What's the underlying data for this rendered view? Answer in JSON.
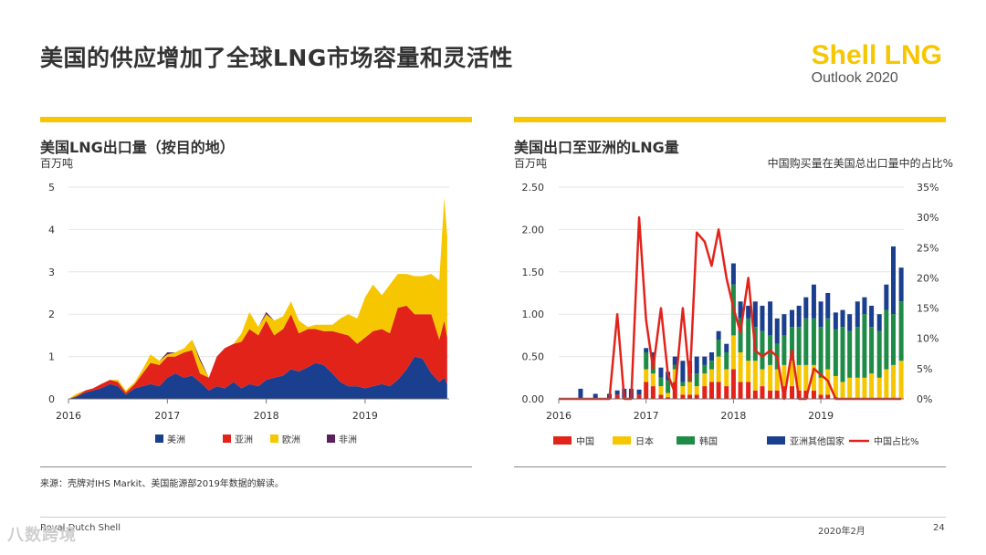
{
  "header": {
    "title": "美国的供应增加了全球LNG市场容量和灵活性",
    "brand_line1": "Shell LNG",
    "brand_line2": "Outlook 2020"
  },
  "colors": {
    "accent": "#F6C700",
    "americas": "#1A3F8F",
    "asia": "#E2231A",
    "europe": "#F6C700",
    "africa": "#5B1F5E",
    "china": "#E2231A",
    "japan": "#F6C700",
    "korea": "#1E8C46",
    "other_asia": "#1A3F8F",
    "china_share": "#E2231A"
  },
  "left_panel": {
    "title": "美国LNG出口量（按目的地）",
    "unit": "百万吨"
  },
  "right_panel": {
    "title": "美国出口至亚洲的LNG量",
    "unit": "百万吨",
    "right_axis_label": "中国购买量在美国总出口量中的占比%"
  },
  "chart_data": [
    {
      "type": "area",
      "stacked": true,
      "title": "美国LNG出口量（按目的地）",
      "ylabel": "百万吨",
      "ylim": [
        0,
        5
      ],
      "yticks": [
        0,
        1,
        2,
        3,
        4,
        5
      ],
      "xlim": [
        2016.0,
        2019.85
      ],
      "x_ticks": [
        2016,
        2017,
        2018,
        2019
      ],
      "x": [
        2016.0,
        2016.08,
        2016.17,
        2016.25,
        2016.33,
        2016.42,
        2016.5,
        2016.58,
        2016.67,
        2016.75,
        2016.83,
        2016.92,
        2017.0,
        2017.08,
        2017.17,
        2017.25,
        2017.33,
        2017.42,
        2017.5,
        2017.58,
        2017.67,
        2017.75,
        2017.83,
        2017.92,
        2018.0,
        2018.08,
        2018.17,
        2018.25,
        2018.33,
        2018.42,
        2018.5,
        2018.58,
        2018.67,
        2018.75,
        2018.83,
        2018.92,
        2019.0,
        2019.08,
        2019.17,
        2019.25,
        2019.33,
        2019.42,
        2019.5,
        2019.58,
        2019.67,
        2019.75,
        2019.8,
        2019.83
      ],
      "series": [
        {
          "name": "美洲",
          "values": [
            0.0,
            0.05,
            0.15,
            0.2,
            0.25,
            0.35,
            0.3,
            0.1,
            0.25,
            0.3,
            0.35,
            0.3,
            0.5,
            0.6,
            0.5,
            0.55,
            0.4,
            0.2,
            0.3,
            0.25,
            0.4,
            0.25,
            0.35,
            0.3,
            0.45,
            0.5,
            0.55,
            0.7,
            0.65,
            0.75,
            0.85,
            0.8,
            0.6,
            0.4,
            0.3,
            0.3,
            0.25,
            0.3,
            0.35,
            0.3,
            0.45,
            0.7,
            1.0,
            0.95,
            0.6,
            0.4,
            0.5,
            0.35
          ]
        },
        {
          "name": "亚洲",
          "values": [
            0.0,
            0.02,
            0.05,
            0.05,
            0.1,
            0.1,
            0.1,
            0.05,
            0.1,
            0.3,
            0.5,
            0.5,
            0.5,
            0.4,
            0.6,
            0.6,
            0.2,
            0.3,
            0.7,
            0.95,
            0.9,
            1.1,
            1.3,
            1.2,
            1.4,
            1.0,
            1.1,
            1.3,
            0.9,
            0.9,
            0.8,
            0.8,
            1.0,
            1.15,
            1.2,
            1.0,
            1.2,
            1.3,
            1.3,
            1.25,
            1.7,
            1.5,
            1.0,
            1.05,
            1.4,
            1.0,
            1.35,
            1.1
          ]
        },
        {
          "name": "欧洲",
          "values": [
            0.0,
            0.05,
            0.0,
            0.0,
            0.0,
            0.0,
            0.05,
            0.05,
            0.05,
            0.1,
            0.2,
            0.1,
            0.05,
            0.1,
            0.1,
            0.25,
            0.3,
            0.0,
            0.0,
            0.0,
            0.0,
            0.2,
            0.4,
            0.2,
            0.15,
            0.35,
            0.3,
            0.3,
            0.3,
            0.05,
            0.1,
            0.15,
            0.15,
            0.35,
            0.5,
            0.6,
            0.95,
            1.1,
            0.8,
            1.15,
            0.8,
            0.75,
            0.9,
            0.9,
            0.95,
            1.4,
            2.9,
            2.4
          ]
        },
        {
          "name": "非洲",
          "values": [
            0,
            0,
            0,
            0,
            0,
            0,
            0,
            0,
            0,
            0,
            0,
            0,
            0.05,
            0,
            0,
            0,
            0.05,
            0,
            0,
            0,
            0,
            0,
            0,
            0,
            0.05,
            0,
            0,
            0,
            0,
            0,
            0,
            0,
            0,
            0,
            0,
            0,
            0,
            0,
            0,
            0,
            0,
            0,
            0,
            0,
            0,
            0,
            0,
            0
          ]
        }
      ],
      "legend": [
        "美洲",
        "亚洲",
        "欧洲",
        "非洲"
      ]
    },
    {
      "type": "bar",
      "stacked": true,
      "title": "美国出口至亚洲的LNG量",
      "ylabel": "百万吨",
      "ylim": [
        0,
        2.5
      ],
      "yticks": [
        "0.00",
        "0.50",
        "1.00",
        "1.50",
        "2.00",
        "2.50"
      ],
      "y2label": "中国购买量在美国总出口量中的占比%",
      "y2lim": [
        0,
        35
      ],
      "y2ticks": [
        "0%",
        "5%",
        "10%",
        "15%",
        "20%",
        "25%",
        "30%",
        "35%"
      ],
      "xlim": [
        2016.0,
        2019.95
      ],
      "x_ticks": [
        2016,
        2017,
        2018,
        2019
      ],
      "x": [
        2016.25,
        2016.42,
        2016.58,
        2016.67,
        2016.75,
        2016.83,
        2016.92,
        2017.0,
        2017.08,
        2017.17,
        2017.25,
        2017.33,
        2017.42,
        2017.5,
        2017.58,
        2017.67,
        2017.75,
        2017.83,
        2017.92,
        2018.0,
        2018.08,
        2018.17,
        2018.25,
        2018.33,
        2018.42,
        2018.5,
        2018.58,
        2018.67,
        2018.75,
        2018.83,
        2018.92,
        2019.0,
        2019.08,
        2019.17,
        2019.25,
        2019.33,
        2019.42,
        2019.5,
        2019.58,
        2019.67,
        2019.75,
        2019.83,
        2019.92
      ],
      "series": [
        {
          "name": "中国",
          "values": [
            0,
            0,
            0.01,
            0.05,
            0.02,
            0,
            0.05,
            0.2,
            0.15,
            0.05,
            0.02,
            0.2,
            0.05,
            0.05,
            0.05,
            0.15,
            0.2,
            0.2,
            0.15,
            0.35,
            0.2,
            0.2,
            0.1,
            0.15,
            0.1,
            0.1,
            0.15,
            0.15,
            0.1,
            0.1,
            0.1,
            0.05,
            0.05,
            0.02,
            0,
            0,
            0,
            0,
            0,
            0,
            0,
            0,
            0
          ]
        },
        {
          "name": "日本",
          "values": [
            0,
            0,
            0,
            0,
            0,
            0,
            0,
            0.15,
            0.15,
            0.1,
            0.05,
            0.15,
            0.1,
            0.15,
            0.1,
            0.15,
            0.15,
            0.3,
            0.2,
            0.4,
            0.35,
            0.25,
            0.35,
            0.2,
            0.3,
            0.25,
            0.25,
            0.3,
            0.3,
            0.3,
            0.3,
            0.2,
            0.3,
            0.25,
            0.2,
            0.25,
            0.25,
            0.25,
            0.3,
            0.25,
            0.35,
            0.4,
            0.45
          ]
        },
        {
          "name": "韩国",
          "values": [
            0,
            0,
            0,
            0,
            0,
            0,
            0,
            0.2,
            0.15,
            0.1,
            0.15,
            0.05,
            0.05,
            0.1,
            0.15,
            0.1,
            0.1,
            0.2,
            0.2,
            0.6,
            0.4,
            0.5,
            0.4,
            0.45,
            0.35,
            0.3,
            0.35,
            0.4,
            0.45,
            0.55,
            0.55,
            0.6,
            0.6,
            0.55,
            0.65,
            0.55,
            0.6,
            0.75,
            0.55,
            0.55,
            0.7,
            0.6,
            0.7
          ]
        },
        {
          "name": "亚洲其他国家",
          "values": [
            0.12,
            0.06,
            0.05,
            0.05,
            0.1,
            0.12,
            0.06,
            0.05,
            0.1,
            0.12,
            0.1,
            0.1,
            0.25,
            0.15,
            0.2,
            0.1,
            0.1,
            0.1,
            0.1,
            0.25,
            0.2,
            0.15,
            0.3,
            0.3,
            0.4,
            0.3,
            0.25,
            0.2,
            0.25,
            0.25,
            0.4,
            0.3,
            0.3,
            0.2,
            0.2,
            0.2,
            0.3,
            0.2,
            0.25,
            0.2,
            0.3,
            0.8,
            0.4
          ]
        }
      ],
      "line": {
        "name": "中国占比%",
        "axis": "right",
        "x": [
          2016.0,
          2016.42,
          2016.5,
          2016.58,
          2016.67,
          2016.75,
          2016.83,
          2016.92,
          2017.0,
          2017.08,
          2017.17,
          2017.25,
          2017.33,
          2017.42,
          2017.5,
          2017.58,
          2017.67,
          2017.75,
          2017.83,
          2017.92,
          2018.0,
          2018.08,
          2018.17,
          2018.25,
          2018.33,
          2018.42,
          2018.5,
          2018.58,
          2018.67,
          2018.75,
          2018.83,
          2018.92,
          2019.0,
          2019.08,
          2019.17,
          2019.25,
          2019.33,
          2019.42,
          2019.5,
          2019.58,
          2019.67,
          2019.75,
          2019.83,
          2019.92
        ],
        "values": [
          0,
          0,
          0,
          0,
          14,
          0,
          0,
          30,
          13,
          5,
          15,
          4,
          1,
          15,
          3,
          27.5,
          26,
          22,
          28,
          20,
          15,
          11,
          20,
          8,
          7,
          8,
          7,
          0,
          8,
          0,
          0,
          5,
          4,
          3,
          0,
          0,
          0,
          0,
          0,
          0,
          0,
          0,
          0,
          0
        ]
      },
      "legend": [
        "中国",
        "日本",
        "韩国",
        "亚洲其他国家",
        "中国占比%"
      ]
    }
  ],
  "footer": {
    "source": "来源：壳牌对IHS Markit、美国能源部2019年数据的解读。",
    "company": "Royal Dutch Shell",
    "date": "2020年2月",
    "page": "24",
    "watermark": "八数跨境"
  }
}
